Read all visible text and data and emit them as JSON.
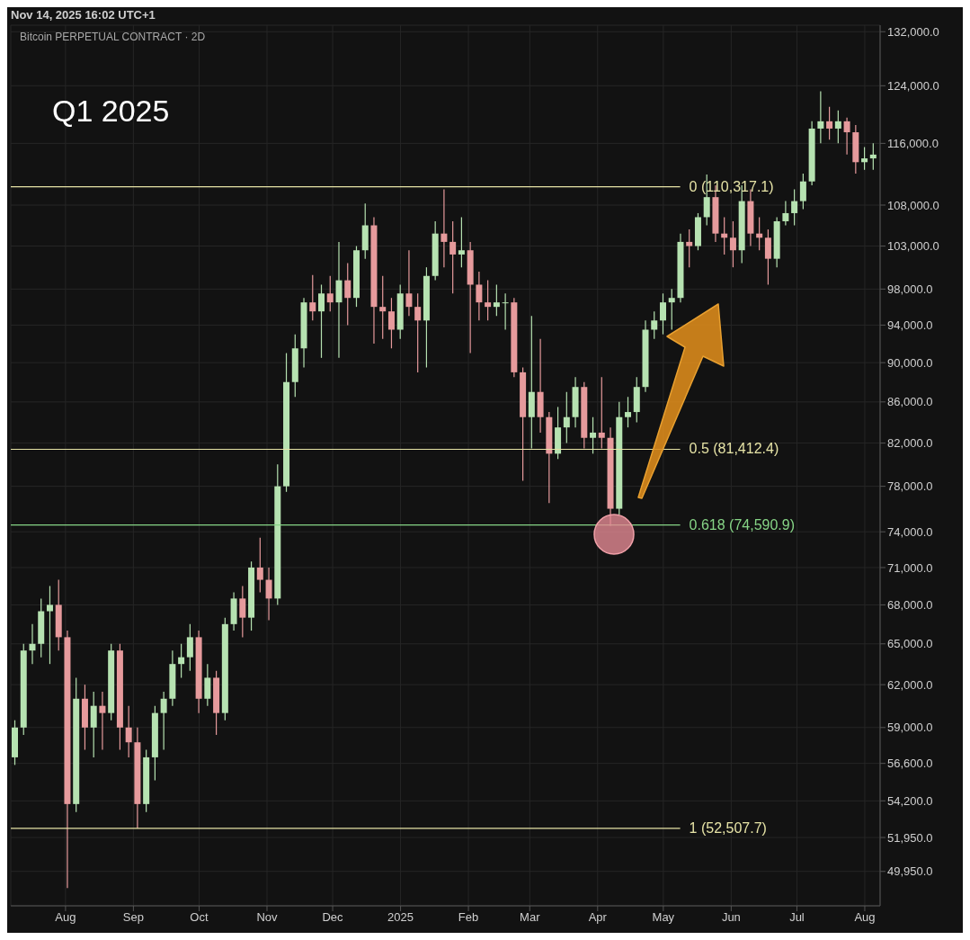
{
  "chart_data": {
    "type": "candlestick",
    "title": "Bitcoin PERPETUAL CONTRACT · 2D",
    "annotations": [
      "Nov 14, 2025 16:02 UTC+1",
      "Q1 2025"
    ],
    "x": [
      "2024-07-09",
      "2024-07-13",
      "2024-07-17",
      "2024-07-21",
      "2024-07-25",
      "2024-07-29",
      "2024-08-02",
      "2024-08-06",
      "2024-08-10",
      "2024-08-14",
      "2024-08-18",
      "2024-08-22",
      "2024-08-26",
      "2024-08-30",
      "2024-09-03",
      "2024-09-07",
      "2024-09-11",
      "2024-09-15",
      "2024-09-19",
      "2024-09-23",
      "2024-09-27",
      "2024-10-01",
      "2024-10-05",
      "2024-10-09",
      "2024-10-13",
      "2024-10-17",
      "2024-10-21",
      "2024-10-25",
      "2024-10-29",
      "2024-11-02",
      "2024-11-06",
      "2024-11-10",
      "2024-11-14",
      "2024-11-18",
      "2024-11-22",
      "2024-11-26",
      "2024-11-30",
      "2024-12-04",
      "2024-12-08",
      "2024-12-12",
      "2024-12-16",
      "2024-12-20",
      "2024-12-24",
      "2024-12-28",
      "2025-01-01",
      "2025-01-05",
      "2025-01-09",
      "2025-01-13",
      "2025-01-17",
      "2025-01-21",
      "2025-01-25",
      "2025-01-29",
      "2025-02-02",
      "2025-02-06",
      "2025-02-10",
      "2025-02-14",
      "2025-02-18",
      "2025-02-22",
      "2025-02-26",
      "2025-03-02",
      "2025-03-06",
      "2025-03-10",
      "2025-03-14",
      "2025-03-18",
      "2025-03-22",
      "2025-03-26",
      "2025-03-30",
      "2025-04-03",
      "2025-04-07",
      "2025-04-11",
      "2025-04-15",
      "2025-04-19",
      "2025-04-23",
      "2025-04-27",
      "2025-05-01",
      "2025-05-05",
      "2025-05-09",
      "2025-05-13",
      "2025-05-17",
      "2025-05-21",
      "2025-05-25",
      "2025-05-29",
      "2025-06-02",
      "2025-06-06",
      "2025-06-10",
      "2025-06-14",
      "2025-06-18",
      "2025-06-22",
      "2025-06-26",
      "2025-06-30",
      "2025-07-04",
      "2025-07-08",
      "2025-07-12",
      "2025-07-16",
      "2025-07-20",
      "2025-07-24",
      "2025-07-28",
      "2025-08-01",
      "2025-08-05"
    ],
    "ohlc": [
      [
        57000,
        59500,
        56500,
        59000
      ],
      [
        59000,
        65000,
        58500,
        64500
      ],
      [
        64500,
        66500,
        63500,
        65000
      ],
      [
        65000,
        68500,
        64000,
        67500
      ],
      [
        67500,
        69500,
        63500,
        68000
      ],
      [
        68000,
        70000,
        64500,
        65500
      ],
      [
        65500,
        66000,
        49000,
        54000
      ],
      [
        54000,
        62500,
        53500,
        61000
      ],
      [
        61000,
        62000,
        57500,
        59000
      ],
      [
        59000,
        61500,
        57000,
        60500
      ],
      [
        60500,
        61500,
        57500,
        60000
      ],
      [
        60000,
        65000,
        59500,
        64500
      ],
      [
        64500,
        65000,
        57500,
        59000
      ],
      [
        59000,
        60500,
        57000,
        58000
      ],
      [
        58000,
        59000,
        52500,
        54000
      ],
      [
        54000,
        57500,
        53500,
        57000
      ],
      [
        57000,
        60500,
        55500,
        60000
      ],
      [
        60000,
        61500,
        57500,
        61000
      ],
      [
        61000,
        64500,
        60500,
        63500
      ],
      [
        63500,
        65000,
        62500,
        64000
      ],
      [
        64000,
        66500,
        63000,
        65500
      ],
      [
        65500,
        66000,
        60000,
        61000
      ],
      [
        61000,
        63500,
        60500,
        62500
      ],
      [
        62500,
        63000,
        58500,
        60000
      ],
      [
        60000,
        67000,
        59500,
        66500
      ],
      [
        66500,
        69000,
        66000,
        68500
      ],
      [
        68500,
        69500,
        65500,
        67000
      ],
      [
        67000,
        71500,
        66000,
        71000
      ],
      [
        71000,
        73500,
        69000,
        70000
      ],
      [
        70000,
        71000,
        66800,
        68500
      ],
      [
        68500,
        80000,
        68000,
        78000
      ],
      [
        78000,
        91000,
        77500,
        88000
      ],
      [
        88000,
        93000,
        86500,
        91500
      ],
      [
        91500,
        97000,
        89500,
        96500
      ],
      [
        96500,
        99600,
        94500,
        95500
      ],
      [
        95500,
        98500,
        90500,
        97500
      ],
      [
        97500,
        99500,
        95500,
        96500
      ],
      [
        96500,
        103500,
        90500,
        99000
      ],
      [
        99000,
        101000,
        94000,
        97000
      ],
      [
        97000,
        103000,
        96000,
        102500
      ],
      [
        102500,
        108200,
        101500,
        105500
      ],
      [
        105500,
        106500,
        92000,
        96000
      ],
      [
        96000,
        99500,
        92500,
        95500
      ],
      [
        95500,
        97000,
        91500,
        93500
      ],
      [
        93500,
        98500,
        92500,
        97500
      ],
      [
        97500,
        102500,
        95000,
        96000
      ],
      [
        96000,
        97500,
        89000,
        94500
      ],
      [
        94500,
        100500,
        89500,
        99500
      ],
      [
        99500,
        106000,
        99000,
        104500
      ],
      [
        104500,
        110000,
        100500,
        103500
      ],
      [
        103500,
        106000,
        97500,
        102000
      ],
      [
        102000,
        106500,
        100500,
        102500
      ],
      [
        102500,
        103500,
        91000,
        98500
      ],
      [
        98500,
        100000,
        94500,
        96500
      ],
      [
        96500,
        99000,
        94500,
        96000
      ],
      [
        96000,
        98500,
        95000,
        96500
      ],
      [
        96500,
        97500,
        93500,
        96500
      ],
      [
        96500,
        97000,
        88500,
        89000
      ],
      [
        89000,
        89500,
        78500,
        84500
      ],
      [
        84500,
        95000,
        81500,
        87000
      ],
      [
        87000,
        92500,
        83000,
        84500
      ],
      [
        84500,
        85000,
        76500,
        81000
      ],
      [
        81000,
        85500,
        80500,
        83500
      ],
      [
        83500,
        87000,
        82000,
        84500
      ],
      [
        84500,
        88500,
        83500,
        87500
      ],
      [
        87500,
        88000,
        81500,
        82500
      ],
      [
        82500,
        84500,
        81000,
        83000
      ],
      [
        83000,
        88500,
        81500,
        82500
      ],
      [
        82500,
        83500,
        74500,
        76000
      ],
      [
        76000,
        86000,
        75500,
        84500
      ],
      [
        84500,
        86500,
        83500,
        85000
      ],
      [
        85000,
        88500,
        84000,
        87500
      ],
      [
        87500,
        94500,
        87000,
        93500
      ],
      [
        93500,
        95500,
        92500,
        94500
      ],
      [
        94500,
        97500,
        93000,
        96500
      ],
      [
        96500,
        98000,
        93500,
        97000
      ],
      [
        97000,
        104500,
        96500,
        103500
      ],
      [
        103500,
        105000,
        100500,
        103000
      ],
      [
        103000,
        107000,
        102500,
        106500
      ],
      [
        106500,
        111900,
        105500,
        109000
      ],
      [
        109000,
        110500,
        103500,
        104500
      ],
      [
        104500,
        106500,
        102000,
        104000
      ],
      [
        104000,
        106000,
        100500,
        102500
      ],
      [
        102500,
        110500,
        101000,
        108500
      ],
      [
        108500,
        110000,
        103000,
        104500
      ],
      [
        104500,
        106500,
        102500,
        104000
      ],
      [
        104000,
        105000,
        98500,
        101500
      ],
      [
        101500,
        106500,
        100500,
        106000
      ],
      [
        106000,
        108500,
        105500,
        107000
      ],
      [
        107000,
        110000,
        105500,
        108500
      ],
      [
        108500,
        112000,
        107500,
        111000
      ],
      [
        111000,
        119000,
        110500,
        118000
      ],
      [
        118000,
        123200,
        116000,
        119000
      ],
      [
        119000,
        121000,
        116500,
        118000
      ],
      [
        118000,
        120500,
        116000,
        119000
      ],
      [
        119000,
        119500,
        114500,
        117500
      ],
      [
        117500,
        118500,
        112000,
        113500
      ],
      [
        113500,
        115500,
        112500,
        114000
      ],
      [
        114000,
        116000,
        112500,
        114500
      ]
    ],
    "colors": [
      "#b6e2b1",
      "#b6e2b1",
      "#b6e2b1",
      "#b6e2b1",
      "#b6e2b1",
      "#e69a9c",
      "#e69a9c",
      "#b6e2b1",
      "#e69a9c",
      "#b6e2b1",
      "#e69a9c",
      "#b6e2b1",
      "#e69a9c",
      "#e69a9c",
      "#e69a9c",
      "#b6e2b1",
      "#b6e2b1",
      "#b6e2b1",
      "#b6e2b1",
      "#b6e2b1",
      "#b6e2b1",
      "#e69a9c",
      "#b6e2b1",
      "#e69a9c",
      "#b6e2b1",
      "#b6e2b1",
      "#e69a9c",
      "#b6e2b1",
      "#e69a9c",
      "#e69a9c",
      "#b6e2b1",
      "#b6e2b1",
      "#b6e2b1",
      "#b6e2b1",
      "#e69a9c",
      "#b6e2b1",
      "#e69a9c",
      "#b6e2b1",
      "#e69a9c",
      "#b6e2b1",
      "#b6e2b1",
      "#e69a9c",
      "#e69a9c",
      "#e69a9c",
      "#b6e2b1",
      "#e69a9c",
      "#e69a9c",
      "#b6e2b1",
      "#b6e2b1",
      "#e69a9c",
      "#e69a9c",
      "#b6e2b1",
      "#e69a9c",
      "#e69a9c",
      "#e69a9c",
      "#b6e2b1",
      "#b6e2b1",
      "#e69a9c",
      "#e69a9c",
      "#b6e2b1",
      "#e69a9c",
      "#e69a9c",
      "#b6e2b1",
      "#b6e2b1",
      "#b6e2b1",
      "#e69a9c",
      "#b6e2b1",
      "#e69a9c",
      "#e69a9c",
      "#b6e2b1",
      "#b6e2b1",
      "#b6e2b1",
      "#b6e2b1",
      "#b6e2b1",
      "#b6e2b1",
      "#b6e2b1",
      "#b6e2b1",
      "#e69a9c",
      "#b6e2b1",
      "#b6e2b1",
      "#e69a9c",
      "#e69a9c",
      "#e69a9c",
      "#b6e2b1",
      "#e69a9c",
      "#e69a9c",
      "#e69a9c",
      "#b6e2b1",
      "#b6e2b1",
      "#b6e2b1",
      "#b6e2b1",
      "#b6e2b1",
      "#b6e2b1",
      "#e69a9c",
      "#b6e2b1",
      "#e69a9c",
      "#e69a9c",
      "#b6e2b1",
      "#b6e2b1"
    ],
    "xlim": [
      "2024-07-07",
      "2025-08-08"
    ],
    "xticks": [
      {
        "value": "2024-08-01",
        "label": "Aug"
      },
      {
        "value": "2024-09-01",
        "label": "Sep"
      },
      {
        "value": "2024-10-01",
        "label": "Oct"
      },
      {
        "value": "2024-11-01",
        "label": "Nov"
      },
      {
        "value": "2024-12-01",
        "label": "Dec"
      },
      {
        "value": "2025-01-01",
        "label": "2025"
      },
      {
        "value": "2025-02-01",
        "label": "Feb"
      },
      {
        "value": "2025-03-01",
        "label": "Mar"
      },
      {
        "value": "2025-04-01",
        "label": "Apr"
      },
      {
        "value": "2025-05-01",
        "label": "May"
      },
      {
        "value": "2025-06-01",
        "label": "Jun"
      },
      {
        "value": "2025-07-01",
        "label": "Jul"
      },
      {
        "value": "2025-08-01",
        "label": "Aug"
      }
    ],
    "ylim": [
      48000,
      133000
    ],
    "yticks": [
      {
        "value": 132000,
        "label": "132,000.0"
      },
      {
        "value": 124000,
        "label": "124,000.0"
      },
      {
        "value": 116000,
        "label": "116,000.0"
      },
      {
        "value": 108000,
        "label": "108,000.0"
      },
      {
        "value": 103000,
        "label": "103,000.0"
      },
      {
        "value": 98000,
        "label": "98,000.0"
      },
      {
        "value": 94000,
        "label": "94,000.0"
      },
      {
        "value": 90000,
        "label": "90,000.0"
      },
      {
        "value": 86000,
        "label": "86,000.0"
      },
      {
        "value": 82000,
        "label": "82,000.0"
      },
      {
        "value": 78000,
        "label": "78,000.0"
      },
      {
        "value": 74000,
        "label": "74,000.0"
      },
      {
        "value": 71000,
        "label": "71,000.0"
      },
      {
        "value": 68000,
        "label": "68,000.0"
      },
      {
        "value": 65000,
        "label": "65,000.0"
      },
      {
        "value": 62000,
        "label": "62,000.0"
      },
      {
        "value": 59000,
        "label": "59,000.0"
      },
      {
        "value": 56600,
        "label": "56,600.0"
      },
      {
        "value": 54200,
        "label": "54,200.0"
      },
      {
        "value": 51950,
        "label": "51,950.0"
      },
      {
        "value": 49950,
        "label": "49,950.0"
      }
    ],
    "log": true,
    "grid": true,
    "ref_lines": [
      {
        "axis": "y",
        "value": 110317.1,
        "label": "0 (110,317.1)",
        "color": "#e6e3a6"
      },
      {
        "axis": "y",
        "value": 81412.4,
        "label": "0.5 (81,412.4)",
        "color": "#e6e3a6"
      },
      {
        "axis": "y",
        "value": 74590.9,
        "label": "0.618 (74,590.9)",
        "color": "#86d486"
      },
      {
        "axis": "y",
        "value": 52507.7,
        "label": "1 (52,507.7)",
        "color": "#e6e3a6"
      }
    ]
  }
}
